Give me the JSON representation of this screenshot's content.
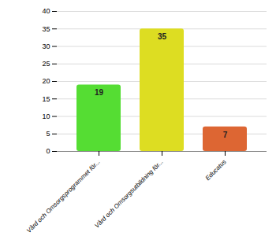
{
  "chart_data": {
    "type": "bar",
    "categories": [
      "Vård och Omsorgsprogrammet för...",
      "Vård och Omsorgsutbildning för...",
      "Educatus"
    ],
    "values": [
      19,
      35,
      7
    ],
    "colors": [
      "#55dd33",
      "#dddd22",
      "#dd6633"
    ],
    "ylim": [
      0,
      40
    ],
    "yticks": [
      0,
      5,
      10,
      15,
      20,
      25,
      30,
      35,
      40
    ],
    "grid": true,
    "data_labels": true
  }
}
